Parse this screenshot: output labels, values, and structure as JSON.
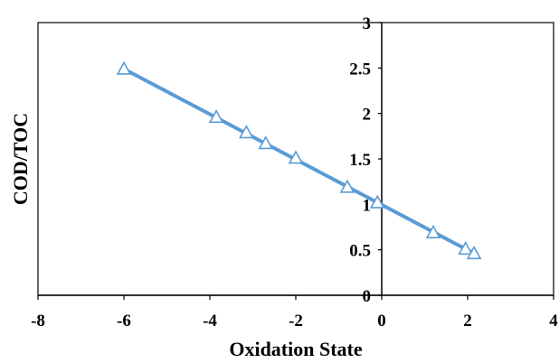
{
  "chart_data": {
    "type": "scatter",
    "title": "",
    "xlabel": "Oxidation State",
    "ylabel": "COD/TOC",
    "xlim": [
      -8,
      4
    ],
    "ylim": [
      0,
      3
    ],
    "xticks": [
      "-8",
      "-6",
      "-4",
      "-2",
      "0",
      "2",
      "4"
    ],
    "yticks": [
      "0",
      "0.5",
      "1",
      "1.5",
      "2",
      "2.5",
      "3"
    ],
    "grid": false,
    "legend": "none",
    "marker": "triangle-open",
    "trendline": {
      "x": [
        -6,
        2.15
      ],
      "y": [
        2.49,
        0.46
      ]
    },
    "series": [
      {
        "x": [
          -6.0,
          -3.85,
          -3.15,
          -2.7,
          -2.0,
          -0.8,
          -0.1,
          1.2,
          1.95,
          2.15
        ],
        "y": [
          2.49,
          1.96,
          1.79,
          1.67,
          1.51,
          1.19,
          1.02,
          0.69,
          0.51,
          0.46
        ]
      }
    ],
    "colors": {
      "series": "#5b9bd5",
      "axis": "#000000",
      "frame": "#000000"
    }
  }
}
